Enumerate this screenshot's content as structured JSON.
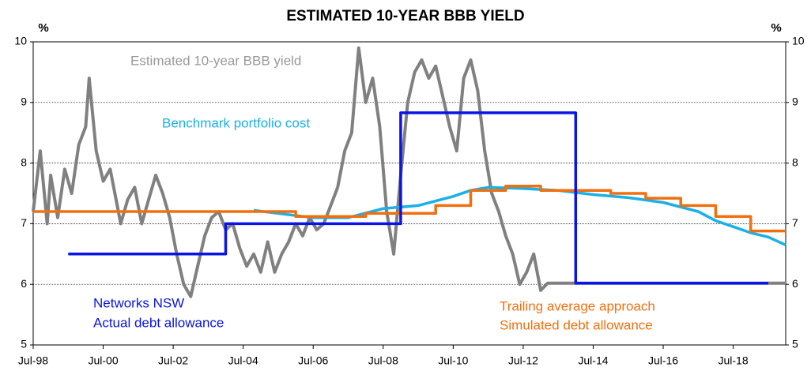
{
  "chart_data": {
    "type": "line",
    "title": "ESTIMATED 10-YEAR BBB YIELD",
    "y_unit_left": "%",
    "y_unit_right": "%",
    "xlim": [
      1998.5,
      2020
    ],
    "xticks": [
      {
        "value": 1998.5,
        "label": "Jul-98"
      },
      {
        "value": 2000.5,
        "label": "Jul-00"
      },
      {
        "value": 2002.5,
        "label": "Jul-02"
      },
      {
        "value": 2004.5,
        "label": "Jul-04"
      },
      {
        "value": 2006.5,
        "label": "Jul-06"
      },
      {
        "value": 2008.5,
        "label": "Jul-08"
      },
      {
        "value": 2010.5,
        "label": "Jul-10"
      },
      {
        "value": 2012.5,
        "label": "Jul-12"
      },
      {
        "value": 2014.5,
        "label": "Jul-14"
      },
      {
        "value": 2016.5,
        "label": "Jul-16"
      },
      {
        "value": 2018.5,
        "label": "Jul-18"
      }
    ],
    "ylim": [
      5,
      10
    ],
    "yticks": [
      5,
      6,
      7,
      8,
      9,
      10
    ],
    "y2lim": [
      5,
      10
    ],
    "y2ticks": [
      5,
      6,
      7,
      8,
      9,
      10
    ],
    "grid": true,
    "annotations": [
      "Estimated 10-year BBB yield",
      "Benchmark portfolio cost",
      "Networks NSW",
      "Actual debt allowance",
      "Trailing average approach",
      "Simulated debt allowance"
    ],
    "series": [
      {
        "name": "Estimated 10-year BBB yield",
        "color": "#808080",
        "x": [
          1998.5,
          1998.7,
          1998.9,
          1999.0,
          1999.2,
          1999.4,
          1999.6,
          1999.8,
          2000.0,
          2000.1,
          2000.3,
          2000.5,
          2000.7,
          2000.9,
          2001.0,
          2001.2,
          2001.4,
          2001.6,
          2001.8,
          2002.0,
          2002.2,
          2002.4,
          2002.6,
          2002.8,
          2003.0,
          2003.2,
          2003.4,
          2003.6,
          2003.8,
          2004.0,
          2004.2,
          2004.4,
          2004.6,
          2004.8,
          2005.0,
          2005.2,
          2005.4,
          2005.6,
          2005.8,
          2006.0,
          2006.2,
          2006.4,
          2006.6,
          2006.8,
          2007.0,
          2007.2,
          2007.4,
          2007.6,
          2007.8,
          2008.0,
          2008.2,
          2008.4,
          2008.6,
          2008.8,
          2009.0,
          2009.2,
          2009.4,
          2009.6,
          2009.8,
          2010.0,
          2010.2,
          2010.4,
          2010.6,
          2010.8,
          2011.0,
          2011.2,
          2011.4,
          2011.6,
          2011.8,
          2012.0,
          2012.2,
          2012.4,
          2012.6,
          2012.8,
          2013.0,
          2013.2,
          2020.0
        ],
        "values": [
          7.2,
          8.2,
          7.0,
          7.8,
          7.1,
          7.9,
          7.5,
          8.3,
          8.6,
          9.4,
          8.2,
          7.7,
          7.9,
          7.3,
          7.0,
          7.4,
          7.6,
          7.0,
          7.4,
          7.8,
          7.5,
          7.1,
          6.5,
          6.0,
          5.8,
          6.3,
          6.8,
          7.1,
          7.2,
          6.9,
          7.0,
          6.6,
          6.3,
          6.5,
          6.2,
          6.7,
          6.2,
          6.5,
          6.7,
          7.0,
          6.8,
          7.1,
          6.9,
          7.0,
          7.3,
          7.6,
          8.2,
          8.5,
          9.9,
          9.0,
          9.4,
          8.6,
          7.2,
          6.5,
          7.8,
          9.0,
          9.5,
          9.7,
          9.4,
          9.6,
          9.1,
          8.6,
          8.2,
          9.4,
          9.7,
          9.2,
          8.2,
          7.5,
          7.2,
          6.8,
          6.5,
          6.0,
          6.2,
          6.5,
          5.9,
          6.02,
          6.02
        ]
      },
      {
        "name": "Benchmark portfolio cost",
        "color": "#1ab0e8",
        "x": [
          2004.8,
          2006.5,
          2007.5,
          2008.5,
          2009.5,
          2010.5,
          2011.0,
          2011.5,
          2012.5,
          2013.5,
          2014.5,
          2015.5,
          2016.5,
          2017.5,
          2018.0,
          2018.5,
          2019.0,
          2019.5,
          2020.0
        ],
        "values": [
          7.22,
          7.1,
          7.1,
          7.25,
          7.3,
          7.45,
          7.55,
          7.6,
          7.58,
          7.55,
          7.48,
          7.43,
          7.35,
          7.2,
          7.05,
          6.95,
          6.85,
          6.78,
          6.65
        ]
      },
      {
        "name": "Trailing average approach",
        "color": "#f07010",
        "x": [
          1998.5,
          2006.0,
          2006.0,
          2008.0,
          2008.0,
          2010.0,
          2010.0,
          2011.0,
          2011.0,
          2012.0,
          2012.0,
          2013.0,
          2013.0,
          2015.0,
          2015.0,
          2016.0,
          2016.0,
          2017.0,
          2017.0,
          2018.0,
          2018.0,
          2019.0,
          2019.0,
          2019.5,
          2019.5,
          2020.0
        ],
        "values": [
          7.2,
          7.2,
          7.12,
          7.12,
          7.17,
          7.17,
          7.3,
          7.3,
          7.55,
          7.55,
          7.62,
          7.62,
          7.55,
          7.55,
          7.5,
          7.5,
          7.42,
          7.42,
          7.3,
          7.3,
          7.12,
          7.12,
          6.88,
          6.88,
          6.88,
          6.88
        ]
      },
      {
        "name": "Networks NSW",
        "color": "#0a14e6",
        "x": [
          1999.5,
          2004.0,
          2004.0,
          2009.0,
          2009.0,
          2014.0,
          2014.0,
          2019.5
        ],
        "values": [
          6.5,
          6.5,
          7.0,
          7.0,
          8.83,
          8.83,
          6.02,
          6.02
        ]
      }
    ]
  }
}
